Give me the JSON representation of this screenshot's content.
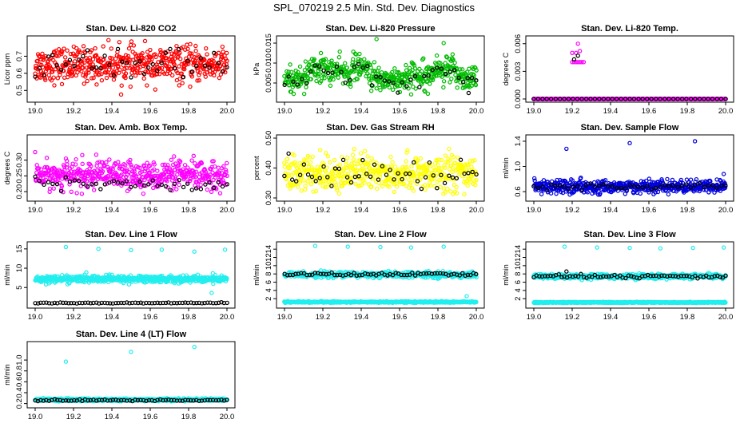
{
  "page_title": "SPL_070219  2.5 Min. Std. Dev. Diagnostics",
  "chart_data": [
    {
      "type": "scatter",
      "title": "Stan. Dev. Li-820 CO2",
      "ylabel": "Licor ppm",
      "xlim": [
        19.0,
        20.0
      ],
      "ylim": [
        0.45,
        0.8
      ],
      "yticks": [
        "0.5",
        "0.6",
        "0.7"
      ],
      "xticks": [
        "19.0",
        "19.2",
        "19.4",
        "19.6",
        "19.8",
        "20.0"
      ],
      "grid": false,
      "series": [
        {
          "color": "#ff0000",
          "density": 520,
          "center": 0.65,
          "spread": 0.05,
          "min": 0.45,
          "max": 0.8,
          "trend": "noisy"
        },
        {
          "color": "#000000",
          "density": 45,
          "center": 0.65,
          "spread": 0.045,
          "min": 0.57,
          "max": 0.76,
          "trend": "noisy"
        }
      ]
    },
    {
      "type": "scatter",
      "title": "Stan. Dev. Li-820 Pressure",
      "ylabel": "kPa",
      "xlim": [
        19.0,
        20.0
      ],
      "ylim": [
        0.001,
        0.016
      ],
      "yticks": [
        "0.005",
        "0.010",
        "0.015"
      ],
      "xticks": [
        "19.0",
        "19.2",
        "19.4",
        "19.6",
        "19.8",
        "20.0"
      ],
      "grid": false,
      "series": [
        {
          "color": "#00bb00",
          "density": 520,
          "center": 0.0072,
          "spread": 0.0016,
          "min": 0.002,
          "max": 0.016,
          "trend": "pressure"
        },
        {
          "color": "#000000",
          "density": 45,
          "center": 0.0065,
          "spread": 0.0012,
          "min": 0.002,
          "max": 0.012,
          "trend": "pressure"
        }
      ],
      "outliers": [
        {
          "x": 19.19,
          "y": 0.0125,
          "color": "#00bb00"
        },
        {
          "x": 19.48,
          "y": 0.016,
          "color": "#00bb00"
        },
        {
          "x": 19.83,
          "y": 0.015,
          "color": "#00bb00"
        },
        {
          "x": 19.96,
          "y": 0.0025,
          "color": "#000000"
        }
      ]
    },
    {
      "type": "scatter",
      "title": "Stan. Dev. Li-820 Temp.",
      "ylabel": "degrees C",
      "xlim": [
        19.0,
        20.0
      ],
      "ylim": [
        0.0,
        0.0065
      ],
      "yticks": [
        "0.000",
        "0.003",
        "0.006"
      ],
      "xticks": [
        "19.0",
        "19.2",
        "19.4",
        "19.6",
        "19.8",
        "20.0"
      ],
      "grid": false,
      "series": [
        {
          "color": "#ff00ff",
          "density": 420,
          "center": 0.0,
          "spread": 0.0,
          "min": 0.0,
          "max": 0.0,
          "trend": "flat"
        },
        {
          "color": "#000000",
          "density": 45,
          "center": 0.0,
          "spread": 0.0,
          "min": 0.0,
          "max": 0.0,
          "trend": "flat"
        }
      ],
      "outliers": [
        {
          "x": 19.2,
          "y": 0.004,
          "color": "#ff00ff"
        },
        {
          "x": 19.21,
          "y": 0.004,
          "color": "#ff00ff"
        },
        {
          "x": 19.22,
          "y": 0.004,
          "color": "#ff00ff"
        },
        {
          "x": 19.23,
          "y": 0.004,
          "color": "#ff00ff"
        },
        {
          "x": 19.24,
          "y": 0.004,
          "color": "#ff00ff"
        },
        {
          "x": 19.25,
          "y": 0.004,
          "color": "#ff00ff"
        },
        {
          "x": 19.26,
          "y": 0.004,
          "color": "#ff00ff"
        },
        {
          "x": 19.2,
          "y": 0.005,
          "color": "#ff00ff"
        },
        {
          "x": 19.22,
          "y": 0.005,
          "color": "#ff00ff"
        },
        {
          "x": 19.23,
          "y": 0.006,
          "color": "#ff00ff"
        },
        {
          "x": 19.24,
          "y": 0.0052,
          "color": "#ff00ff"
        },
        {
          "x": 19.21,
          "y": 0.0043,
          "color": "#000000"
        },
        {
          "x": 19.23,
          "y": 0.0047,
          "color": "#000000"
        }
      ]
    },
    {
      "type": "scatter",
      "title": "Stan. Dev. Amb. Box Temp.",
      "ylabel": "degrees C",
      "xlim": [
        19.0,
        20.0
      ],
      "ylim": [
        0.18,
        0.37
      ],
      "yticks": [
        "0.20",
        "0.25",
        "0.30"
      ],
      "xticks": [
        "19.0",
        "19.2",
        "19.4",
        "19.6",
        "19.8",
        "20.0"
      ],
      "grid": false,
      "series": [
        {
          "color": "#ff00ff",
          "density": 520,
          "center": 0.252,
          "spread": 0.022,
          "min": 0.19,
          "max": 0.36,
          "trend": "noisy"
        },
        {
          "color": "#000000",
          "density": 45,
          "center": 0.225,
          "spread": 0.012,
          "min": 0.2,
          "max": 0.26,
          "trend": "noisy"
        }
      ]
    },
    {
      "type": "scatter",
      "title": "Stan. Dev. Gas Stream RH",
      "ylabel": "percent",
      "xlim": [
        19.0,
        20.0
      ],
      "ylim": [
        0.3,
        0.5
      ],
      "yticks": [
        "0.30",
        "0.40",
        "0.50"
      ],
      "xticks": [
        "19.0",
        "19.2",
        "19.4",
        "19.6",
        "19.8",
        "20.0"
      ],
      "grid": false,
      "series": [
        {
          "color": "#ffff00",
          "density": 520,
          "center": 0.385,
          "spread": 0.03,
          "min": 0.31,
          "max": 0.5,
          "trend": "noisy"
        },
        {
          "color": "#000000",
          "density": 50,
          "center": 0.38,
          "spread": 0.025,
          "min": 0.33,
          "max": 0.47,
          "trend": "noisy"
        }
      ]
    },
    {
      "type": "scatter",
      "title": "Stan. Dev. Sample Flow",
      "ylabel": "ml/min",
      "xlim": [
        19.0,
        20.0
      ],
      "ylim": [
        0.5,
        1.45
      ],
      "yticks": [
        "0.6",
        "1.0",
        "1.4"
      ],
      "xticks": [
        "19.0",
        "19.2",
        "19.4",
        "19.6",
        "19.8",
        "20.0"
      ],
      "grid": false,
      "series": [
        {
          "color": "#0000dd",
          "density": 520,
          "center": 0.68,
          "spread": 0.05,
          "min": 0.55,
          "max": 0.95,
          "trend": "noisy"
        },
        {
          "color": "#000000",
          "density": 45,
          "center": 0.68,
          "spread": 0.03,
          "min": 0.6,
          "max": 0.78,
          "trend": "noisy"
        }
      ],
      "outliers": [
        {
          "x": 19.04,
          "y": 0.56,
          "color": "#0000dd"
        },
        {
          "x": 19.05,
          "y": 0.62,
          "color": "#0000dd"
        },
        {
          "x": 19.17,
          "y": 1.28,
          "color": "#0000dd"
        },
        {
          "x": 19.5,
          "y": 1.37,
          "color": "#0000dd"
        },
        {
          "x": 19.84,
          "y": 1.4,
          "color": "#0000dd"
        },
        {
          "x": 19.99,
          "y": 0.88,
          "color": "#0000dd"
        }
      ]
    },
    {
      "type": "scatter",
      "title": "Stan. Dev. Line 1 Flow",
      "ylabel": "ml/min",
      "xlim": [
        19.0,
        20.0
      ],
      "ylim": [
        0.5,
        16.0
      ],
      "yticks": [
        "5",
        "10",
        "15"
      ],
      "xticks": [
        "19.0",
        "19.2",
        "19.4",
        "19.6",
        "19.8",
        "20.0"
      ],
      "grid": false,
      "series": [
        {
          "color": "#22eeee",
          "density": 560,
          "center": 7.2,
          "spread": 0.45,
          "min": 5.0,
          "max": 9.0,
          "trend": "noisy"
        },
        {
          "color": "#000000",
          "density": 70,
          "center": 1.0,
          "spread": 0.08,
          "min": 0.8,
          "max": 1.3,
          "trend": "noisy"
        }
      ],
      "outliers": [
        {
          "x": 19.16,
          "y": 15.5,
          "color": "#22eeee"
        },
        {
          "x": 19.33,
          "y": 15.0,
          "color": "#22eeee"
        },
        {
          "x": 19.5,
          "y": 14.7,
          "color": "#22eeee"
        },
        {
          "x": 19.66,
          "y": 14.8,
          "color": "#22eeee"
        },
        {
          "x": 19.83,
          "y": 14.3,
          "color": "#22eeee"
        },
        {
          "x": 19.99,
          "y": 14.8,
          "color": "#22eeee"
        },
        {
          "x": 19.92,
          "y": 3.6,
          "color": "#22eeee"
        }
      ]
    },
    {
      "type": "scatter",
      "title": "Stan. Dev. Line 2 Flow",
      "ylabel": "ml/min",
      "xlim": [
        19.0,
        20.0
      ],
      "ylim": [
        0.5,
        15.0
      ],
      "yticks": [
        "2",
        "4",
        "6",
        "8",
        "10",
        "12",
        "14"
      ],
      "xticks": [
        "19.0",
        "19.2",
        "19.4",
        "19.6",
        "19.8",
        "20.0"
      ],
      "grid": false,
      "series": [
        {
          "color": "#22eeee",
          "density": 520,
          "center": 7.8,
          "spread": 0.35,
          "min": 6.0,
          "max": 9.0,
          "trend": "noisy"
        },
        {
          "color": "#22eeee",
          "density": 520,
          "center": 1.2,
          "spread": 0.08,
          "min": 0.9,
          "max": 1.5,
          "trend": "noisy"
        },
        {
          "color": "#000000",
          "density": 70,
          "center": 7.9,
          "spread": 0.2,
          "min": 7.4,
          "max": 8.8,
          "trend": "noisy"
        }
      ],
      "outliers": [
        {
          "x": 19.16,
          "y": 14.8,
          "color": "#22eeee"
        },
        {
          "x": 19.33,
          "y": 14.6,
          "color": "#22eeee"
        },
        {
          "x": 19.5,
          "y": 14.5,
          "color": "#22eeee"
        },
        {
          "x": 19.66,
          "y": 14.4,
          "color": "#22eeee"
        },
        {
          "x": 19.83,
          "y": 14.6,
          "color": "#22eeee"
        },
        {
          "x": 19.95,
          "y": 2.6,
          "color": "#22eeee"
        }
      ]
    },
    {
      "type": "scatter",
      "title": "Stan. Dev. Line 3 Flow",
      "ylabel": "ml/min",
      "xlim": [
        19.0,
        20.0
      ],
      "ylim": [
        0.5,
        15.0
      ],
      "yticks": [
        "2",
        "4",
        "6",
        "8",
        "10",
        "12",
        "14"
      ],
      "xticks": [
        "19.0",
        "19.2",
        "19.4",
        "19.6",
        "19.8",
        "20.0"
      ],
      "grid": false,
      "series": [
        {
          "color": "#22eeee",
          "density": 520,
          "center": 7.4,
          "spread": 0.3,
          "min": 6.0,
          "max": 8.6,
          "trend": "noisy"
        },
        {
          "color": "#22eeee",
          "density": 520,
          "center": 1.1,
          "spread": 0.06,
          "min": 0.9,
          "max": 1.4,
          "trend": "noisy"
        },
        {
          "color": "#000000",
          "density": 70,
          "center": 7.4,
          "spread": 0.2,
          "min": 6.9,
          "max": 8.4,
          "trend": "noisy"
        }
      ],
      "outliers": [
        {
          "x": 19.16,
          "y": 14.6,
          "color": "#22eeee"
        },
        {
          "x": 19.33,
          "y": 14.4,
          "color": "#22eeee"
        },
        {
          "x": 19.5,
          "y": 14.3,
          "color": "#22eeee"
        },
        {
          "x": 19.66,
          "y": 14.2,
          "color": "#22eeee"
        },
        {
          "x": 19.83,
          "y": 14.3,
          "color": "#22eeee"
        },
        {
          "x": 19.99,
          "y": 14.4,
          "color": "#22eeee"
        },
        {
          "x": 19.17,
          "y": 8.6,
          "color": "#000000"
        }
      ]
    },
    {
      "type": "scatter",
      "title": "Stan. Dev. Line 4 (LT) Flow",
      "ylabel": "ml/min",
      "xlim": [
        19.0,
        20.0
      ],
      "ylim": [
        0.18,
        1.28
      ],
      "yticks": [
        "0.2",
        "0.4",
        "0.6",
        "0.8",
        "1.0"
      ],
      "xticks": [
        "19.0",
        "19.2",
        "19.4",
        "19.6",
        "19.8",
        "20.0"
      ],
      "grid": false,
      "series": [
        {
          "color": "#22eeee",
          "density": 560,
          "center": 0.27,
          "spread": 0.012,
          "min": 0.24,
          "max": 0.31,
          "trend": "noisy"
        },
        {
          "color": "#000000",
          "density": 70,
          "center": 0.26,
          "spread": 0.008,
          "min": 0.24,
          "max": 0.29,
          "trend": "noisy"
        }
      ],
      "outliers": [
        {
          "x": 19.16,
          "y": 0.97,
          "color": "#22eeee"
        },
        {
          "x": 19.5,
          "y": 1.15,
          "color": "#22eeee"
        },
        {
          "x": 19.83,
          "y": 1.24,
          "color": "#22eeee"
        }
      ]
    }
  ]
}
